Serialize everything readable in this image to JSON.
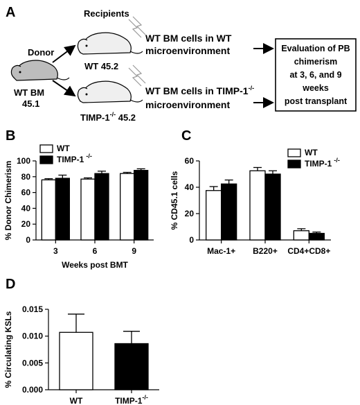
{
  "panelA": {
    "letter": "A",
    "recipients_label": "Recipients",
    "donor_label": "Donor",
    "donor_line1": "WT BM",
    "donor_line2": "45.1",
    "recipient_wt_label": "WT 45.2",
    "recipient_timp_label": "TIMP-1",
    "recipient_timp_sup": "-/-",
    "recipient_timp_suffix": " 45.2",
    "desc_wt_line1": "WT BM cells in WT",
    "desc_wt_line2": "microenvironment",
    "desc_timp_line1": "WT BM cells in TIMP-1",
    "desc_timp_sup": "-/-",
    "desc_timp_line2": "microenvironment",
    "eval_lines": [
      "Evaluation of PB",
      "chimerism",
      "at 3, 6, and 9",
      "weeks",
      "post transplant"
    ]
  },
  "chart_data": [
    {
      "panel": "B",
      "type": "bar",
      "categories": [
        "3",
        "6",
        "9"
      ],
      "series": [
        {
          "name": "WT",
          "values": [
            76,
            77,
            84
          ],
          "errors": [
            1.5,
            1.5,
            1.5
          ],
          "color": "#ffffff"
        },
        {
          "name": "TIMP-1 -/-",
          "values": [
            78,
            84,
            88
          ],
          "errors": [
            4,
            3,
            2
          ],
          "color": "#000000"
        }
      ],
      "xlabel": "Weeks post BMT",
      "ylabel": "% Donor Chimerism",
      "ylim": [
        0,
        100
      ],
      "yticks": [
        "0",
        "20",
        "40",
        "60",
        "80",
        "100"
      ],
      "legend": [
        "WT",
        "TIMP-1"
      ],
      "legend_sup": [
        "",
        "-/-"
      ]
    },
    {
      "panel": "C",
      "type": "bar",
      "categories": [
        "Mac-1+",
        "B220+",
        "CD4+CD8+"
      ],
      "series": [
        {
          "name": "WT",
          "values": [
            37.5,
            52.5,
            7
          ],
          "errors": [
            3,
            2.5,
            1.5
          ],
          "color": "#ffffff"
        },
        {
          "name": "TIMP-1 -/-",
          "values": [
            42.5,
            50,
            5
          ],
          "errors": [
            3,
            2.5,
            1
          ],
          "color": "#000000"
        }
      ],
      "xlabel": "",
      "ylabel": "% CD45.1 cells",
      "ylim": [
        0,
        60
      ],
      "yticks": [
        "0",
        "20",
        "40",
        "60"
      ],
      "legend": [
        "WT",
        "TIMP-1"
      ],
      "legend_sup": [
        "",
        "-/-"
      ]
    },
    {
      "panel": "D",
      "type": "bar",
      "categories": [
        "WT",
        "TIMP-1"
      ],
      "category_sup": [
        "",
        "-/-"
      ],
      "series": [
        {
          "name": "",
          "values": [
            0.0107,
            0.0086
          ],
          "errors": [
            0.0034,
            0.0023
          ],
          "colors": [
            "#ffffff",
            "#000000"
          ]
        }
      ],
      "xlabel": "",
      "ylabel": "% Circulating KSLs",
      "ylim": [
        0,
        0.015
      ],
      "yticks": [
        "0.000",
        "0.005",
        "0.010",
        "0.015"
      ]
    }
  ]
}
